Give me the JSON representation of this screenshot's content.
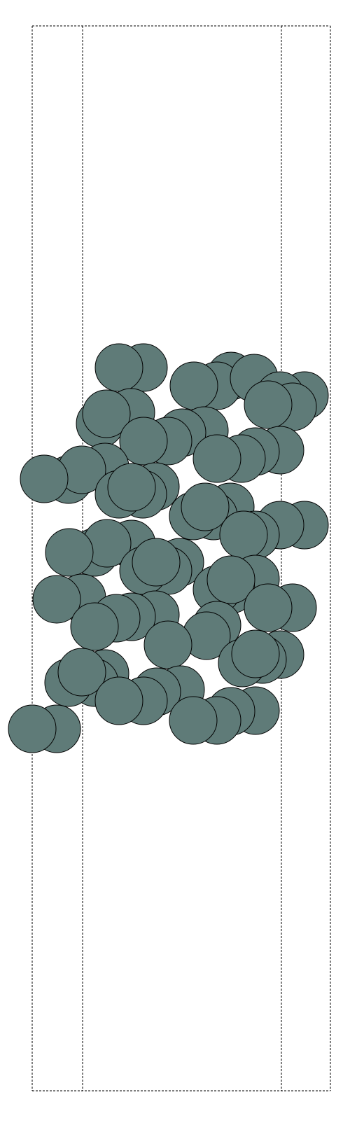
{
  "diagram": {
    "type": "atomic-slab-side-view",
    "atom_fill": "#5f7b78",
    "atom_stroke": "#000000",
    "cell_line_color": "#000000",
    "cell_line_style": "dashed",
    "atom_count": 98
  }
}
